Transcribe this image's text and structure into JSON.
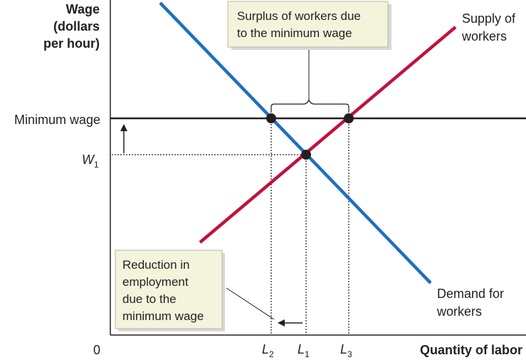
{
  "axes": {
    "y_title": [
      "Wage",
      "(dollars",
      "per hour)"
    ],
    "x_title": "Quantity of labor",
    "origin": "0",
    "min_wage_label": "Minimum wage",
    "w1_label": "W",
    "w1_sub": "1"
  },
  "x_ticks": [
    {
      "letter": "L",
      "sub": "2"
    },
    {
      "letter": "L",
      "sub": "1"
    },
    {
      "letter": "L",
      "sub": "3"
    }
  ],
  "curves": {
    "supply_label": [
      "Supply of",
      "workers"
    ],
    "demand_label": [
      "Demand for",
      "workers"
    ],
    "supply_color": "#c0123c",
    "demand_color": "#1f6fbf"
  },
  "callouts": {
    "surplus": [
      "Surplus of workers due",
      "to the minimum wage"
    ],
    "reduction": [
      "Reduction in",
      "employment",
      "due to the",
      "minimum wage"
    ]
  },
  "colors": {
    "callout_bg": "#f4f3dc",
    "axis": "#231f20"
  }
}
